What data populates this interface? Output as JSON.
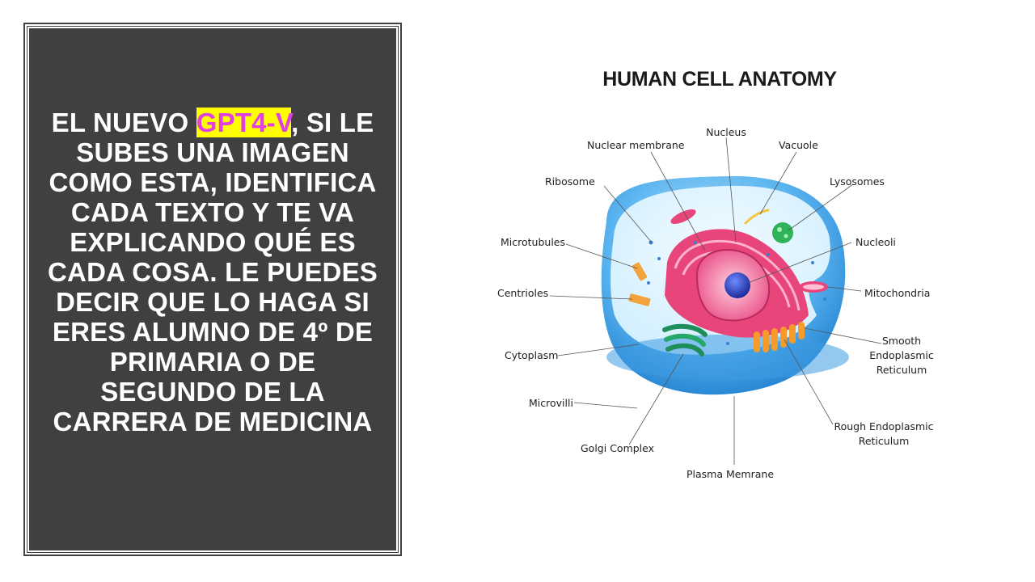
{
  "panel": {
    "text_before": "EL NUEVO ",
    "highlight": "GPT4-V",
    "text_after": ", SI LE SUBES UNA IMAGEN COMO ESTA, IDENTIFICA CADA TEXTO Y TE VA EXPLICANDO QUÉ ES CADA COSA. LE PUEDES DECIR QUE LO HAGA SI ERES ALUMNO DE 4º DE PRIMARIA O DE SEGUNDO DE LA CARRERA DE MEDICINA",
    "highlight_bg": "#ffff00",
    "highlight_color": "#e040e0",
    "bg_color": "#404040"
  },
  "diagram": {
    "title": "HUMAN CELL ANATOMY",
    "labels": {
      "nucleus": "Nucleus",
      "nuclear_membrane": "Nuclear membrane",
      "vacuole": "Vacuole",
      "ribosome": "Ribosome",
      "lysosomes": "Lysosomes",
      "microtubules": "Microtubules",
      "nucleoli": "Nucleoli",
      "centrioles": "Centrioles",
      "mitochondria": "Mitochondria",
      "smooth_er_1": "Smooth",
      "smooth_er_2": "Endoplasmic",
      "smooth_er_3": "Reticulum",
      "cytoplasm": "Cytoplasm",
      "microvilli": "Microvilli",
      "rough_er_1": "Rough Endoplasmic",
      "rough_er_2": "Reticulum",
      "golgi": "Golgi Complex",
      "plasma": "Plasma Memrane"
    }
  }
}
